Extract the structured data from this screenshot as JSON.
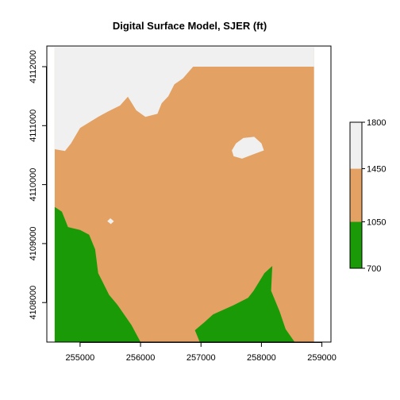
{
  "title": "Digital Surface Model, SJER (ft)",
  "x_axis": {
    "ticks": [
      255000,
      256000,
      257000,
      258000,
      259000
    ],
    "tick_labels": [
      "255000",
      "256000",
      "257000",
      "258000",
      "259000"
    ],
    "range": [
      254450,
      259150
    ]
  },
  "y_axis": {
    "ticks": [
      4108000,
      4109000,
      4110000,
      4111000,
      4112000
    ],
    "tick_labels": [
      "4108000",
      "4109000",
      "4110000",
      "4111000",
      "4112000"
    ],
    "range": [
      4107330,
      4112350
    ]
  },
  "extent": {
    "xmin": 254580,
    "xmax": 258870,
    "ymin": 4107330,
    "ymax": 4112330
  },
  "legend": {
    "breaks": [
      700,
      1050,
      1450,
      1800
    ],
    "tick_labels": [
      "700",
      "1050",
      "1450",
      "1800"
    ],
    "colors": [
      "#1a9a06",
      "#e3a263",
      "#f0f0f0"
    ]
  },
  "regions": [
    {
      "class": "upper",
      "color": "#f0f0f0",
      "polygon": [
        [
          254580,
          4112330
        ],
        [
          258870,
          4112330
        ],
        [
          258870,
          4112000
        ],
        [
          256870,
          4112000
        ],
        [
          256700,
          4111800
        ],
        [
          256560,
          4111700
        ],
        [
          256460,
          4111500
        ],
        [
          256350,
          4111380
        ],
        [
          256280,
          4111200
        ],
        [
          256080,
          4111150
        ],
        [
          255930,
          4111260
        ],
        [
          255790,
          4111490
        ],
        [
          255660,
          4111340
        ],
        [
          255480,
          4111250
        ],
        [
          255300,
          4111150
        ],
        [
          255000,
          4110960
        ],
        [
          254850,
          4110700
        ],
        [
          254750,
          4110570
        ],
        [
          254580,
          4110600
        ]
      ]
    },
    {
      "class": "upper",
      "color": "#f0f0f0",
      "polygon": [
        [
          257540,
          4110480
        ],
        [
          257680,
          4110440
        ],
        [
          257880,
          4110520
        ],
        [
          258040,
          4110580
        ],
        [
          258000,
          4110700
        ],
        [
          257880,
          4110810
        ],
        [
          257700,
          4110790
        ],
        [
          257580,
          4110700
        ],
        [
          257510,
          4110580
        ]
      ]
    },
    {
      "class": "upper",
      "color": "#f0f0f0",
      "polygon": [
        [
          255450,
          4109380
        ],
        [
          255510,
          4109330
        ],
        [
          255560,
          4109380
        ],
        [
          255500,
          4109430
        ]
      ]
    },
    {
      "class": "lower",
      "color": "#1a9a06",
      "polygon": [
        [
          254580,
          4109620
        ],
        [
          254700,
          4109540
        ],
        [
          254800,
          4109280
        ],
        [
          255000,
          4109230
        ],
        [
          255150,
          4109150
        ],
        [
          255250,
          4108900
        ],
        [
          255300,
          4108500
        ],
        [
          255480,
          4108130
        ],
        [
          255620,
          4107960
        ],
        [
          255850,
          4107620
        ],
        [
          256000,
          4107330
        ],
        [
          254580,
          4107330
        ]
      ]
    },
    {
      "class": "lower",
      "color": "#1a9a06",
      "polygon": [
        [
          256980,
          4107330
        ],
        [
          256900,
          4107530
        ],
        [
          257050,
          4107660
        ],
        [
          257200,
          4107800
        ],
        [
          257530,
          4107950
        ],
        [
          257780,
          4108080
        ],
        [
          257870,
          4108200
        ],
        [
          258050,
          4108500
        ],
        [
          258180,
          4108620
        ],
        [
          258160,
          4108200
        ],
        [
          258300,
          4107850
        ],
        [
          258400,
          4107550
        ],
        [
          258550,
          4107330
        ]
      ]
    }
  ]
}
